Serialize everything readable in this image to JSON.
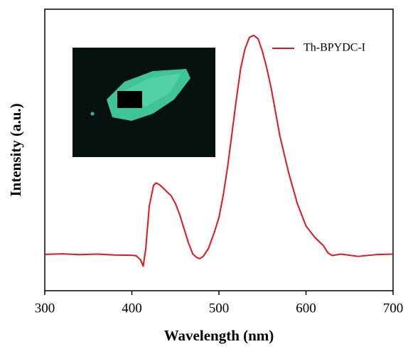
{
  "chart_data": {
    "type": "line",
    "xlabel": "Wavelength (nm)",
    "ylabel": "Intensity (a.u.)",
    "x": [
      300,
      320,
      340,
      360,
      380,
      400,
      405,
      410,
      413,
      416,
      420,
      425,
      428,
      432,
      436,
      440,
      445,
      450,
      455,
      460,
      465,
      470,
      475,
      478,
      482,
      488,
      495,
      500,
      505,
      510,
      515,
      520,
      525,
      530,
      535,
      540,
      545,
      550,
      555,
      560,
      570,
      580,
      590,
      600,
      610,
      620,
      625,
      630,
      640,
      660,
      680,
      700
    ],
    "series": [
      {
        "name": "Th-BPYDC-I",
        "color": "#e8141c",
        "values": [
          0.129,
          0.131,
          0.128,
          0.13,
          0.127,
          0.126,
          0.124,
          0.11,
          0.087,
          0.15,
          0.3,
          0.375,
          0.383,
          0.376,
          0.365,
          0.352,
          0.338,
          0.31,
          0.27,
          0.22,
          0.17,
          0.13,
          0.117,
          0.114,
          0.122,
          0.15,
          0.21,
          0.26,
          0.34,
          0.44,
          0.56,
          0.68,
          0.79,
          0.86,
          0.9,
          0.907,
          0.895,
          0.85,
          0.79,
          0.72,
          0.55,
          0.42,
          0.31,
          0.23,
          0.19,
          0.16,
          0.135,
          0.125,
          0.13,
          0.122,
          0.128,
          0.13
        ]
      }
    ],
    "xlim": [
      300,
      700
    ],
    "xticks": [
      300,
      400,
      500,
      600,
      700
    ],
    "ylim": [
      0,
      1
    ],
    "legend": "upper right"
  }
}
